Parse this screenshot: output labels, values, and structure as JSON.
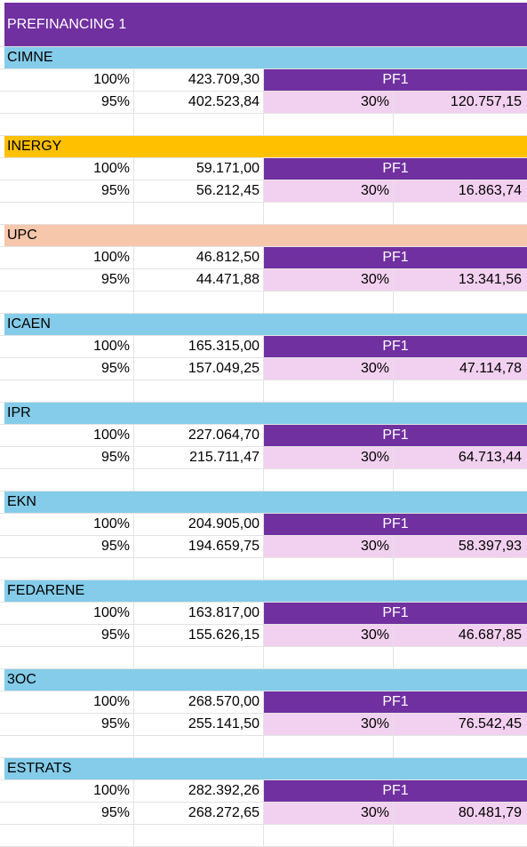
{
  "title": "PREFINANCING 1",
  "colors": {
    "title_bg": "#7030a0",
    "pf_bg": "#7030a0",
    "pct_bg": "#f2d0ef",
    "blue": "#84cce9",
    "orange": "#ffc000",
    "peach": "#f7c7ac"
  },
  "partners": [
    {
      "name": "CIMNE",
      "color": "blue",
      "p100": "100%",
      "amount100": "423.709,30",
      "pf": "PF1",
      "p95": "95%",
      "amount95": "402.523,84",
      "rate": "30%",
      "prefinance": "120.757,15"
    },
    {
      "name": "INERGY",
      "color": "orange",
      "p100": "100%",
      "amount100": "59.171,00",
      "pf": "PF1",
      "p95": "95%",
      "amount95": "56.212,45",
      "rate": "30%",
      "prefinance": "16.863,74"
    },
    {
      "name": "UPC",
      "color": "peach",
      "p100": "100%",
      "amount100": "46.812,50",
      "pf": "PF1",
      "p95": "95%",
      "amount95": "44.471,88",
      "rate": "30%",
      "prefinance": "13.341,56"
    },
    {
      "name": "ICAEN",
      "color": "blue",
      "p100": "100%",
      "amount100": "165.315,00",
      "pf": "PF1",
      "p95": "95%",
      "amount95": "157.049,25",
      "rate": "30%",
      "prefinance": "47.114,78"
    },
    {
      "name": "IPR",
      "color": "blue",
      "p100": "100%",
      "amount100": "227.064,70",
      "pf": "PF1",
      "p95": "95%",
      "amount95": "215.711,47",
      "rate": "30%",
      "prefinance": "64.713,44"
    },
    {
      "name": "EKN",
      "color": "blue",
      "p100": "100%",
      "amount100": "204.905,00",
      "pf": "PF1",
      "p95": "95%",
      "amount95": "194.659,75",
      "rate": "30%",
      "prefinance": "58.397,93"
    },
    {
      "name": "FEDARENE",
      "color": "blue",
      "p100": "100%",
      "amount100": "163.817,00",
      "pf": "PF1",
      "p95": "95%",
      "amount95": "155.626,15",
      "rate": "30%",
      "prefinance": "46.687,85"
    },
    {
      "name": "3OC",
      "color": "blue",
      "p100": "100%",
      "amount100": "268.570,00",
      "pf": "PF1",
      "p95": "95%",
      "amount95": "255.141,50",
      "rate": "30%",
      "prefinance": "76.542,45"
    },
    {
      "name": "ESTRATS",
      "color": "blue",
      "p100": "100%",
      "amount100": "282.392,26",
      "pf": "PF1",
      "p95": "95%",
      "amount95": "268.272,65",
      "rate": "30%",
      "prefinance": "80.481,79"
    }
  ]
}
